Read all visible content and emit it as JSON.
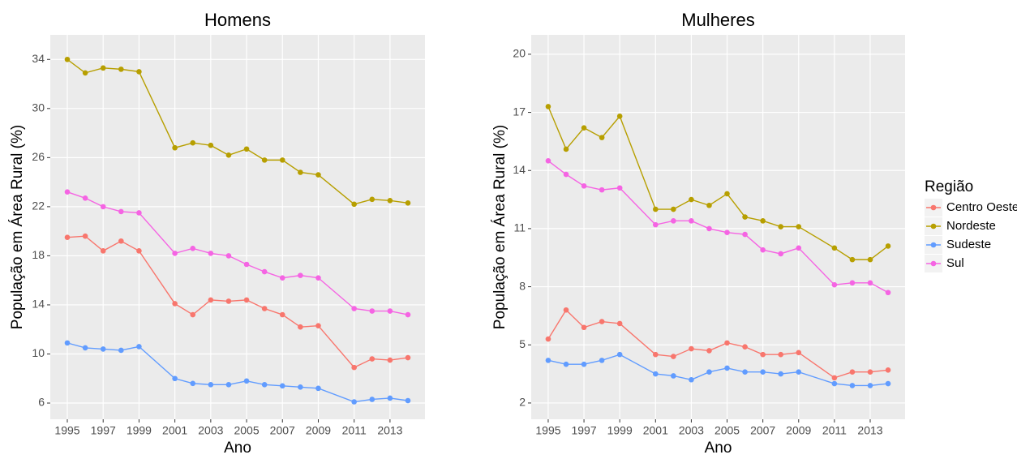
{
  "chart_data": [
    {
      "type": "line",
      "title": "Homens",
      "x_label": "Ano",
      "y_label": "População em Área Rural (%)",
      "x": [
        1995,
        1996,
        1997,
        1998,
        1999,
        2001,
        2002,
        2003,
        2004,
        2005,
        2006,
        2007,
        2008,
        2009,
        2011,
        2012,
        2013,
        2014
      ],
      "series": [
        {
          "name": "Centro Oeste",
          "color": "#F8766D",
          "values": [
            19.5,
            19.6,
            18.4,
            19.2,
            18.4,
            14.1,
            13.2,
            14.4,
            14.3,
            14.4,
            13.7,
            13.2,
            12.2,
            12.3,
            8.9,
            9.6,
            9.5,
            9.7
          ]
        },
        {
          "name": "Nordeste",
          "color": "#B79F00",
          "values": [
            34.0,
            32.9,
            33.3,
            33.2,
            33.0,
            26.8,
            27.2,
            27.0,
            26.2,
            26.7,
            25.8,
            25.8,
            24.8,
            24.6,
            22.2,
            22.6,
            22.5,
            22.3
          ]
        },
        {
          "name": "Sudeste",
          "color": "#619CFF",
          "values": [
            10.9,
            10.5,
            10.4,
            10.3,
            10.6,
            8.0,
            7.6,
            7.5,
            7.5,
            7.8,
            7.5,
            7.4,
            7.3,
            7.2,
            6.1,
            6.3,
            6.4,
            6.2
          ]
        },
        {
          "name": "Sul",
          "color": "#F564E3",
          "values": [
            23.2,
            22.7,
            22.0,
            21.6,
            21.5,
            18.2,
            18.6,
            18.2,
            18.0,
            17.3,
            16.7,
            16.2,
            16.4,
            16.2,
            13.7,
            13.5,
            13.5,
            13.2
          ]
        }
      ],
      "xlim": [
        1994.05,
        2014.95
      ],
      "xticks": [
        1995,
        1997,
        1999,
        2001,
        2003,
        2005,
        2007,
        2009,
        2011,
        2013
      ],
      "ylim": [
        4.68,
        36
      ],
      "yticks": [
        6,
        10,
        14,
        18,
        22,
        26,
        30,
        34
      ],
      "grid": true
    },
    {
      "type": "line",
      "title": "Mulheres",
      "x_label": "Ano",
      "y_label": "População em Área Rural (%)",
      "legend_title": "Região",
      "x": [
        1995,
        1996,
        1997,
        1998,
        1999,
        2001,
        2002,
        2003,
        2004,
        2005,
        2006,
        2007,
        2008,
        2009,
        2011,
        2012,
        2013,
        2014
      ],
      "series": [
        {
          "name": "Centro Oeste",
          "color": "#F8766D",
          "values": [
            5.3,
            6.8,
            5.9,
            6.2,
            6.1,
            4.5,
            4.4,
            4.8,
            4.7,
            5.1,
            4.9,
            4.5,
            4.5,
            4.6,
            3.3,
            3.6,
            3.6,
            3.7
          ]
        },
        {
          "name": "Nordeste",
          "color": "#B79F00",
          "values": [
            17.3,
            15.1,
            16.2,
            15.7,
            16.8,
            12.0,
            12.0,
            12.5,
            12.2,
            12.8,
            11.6,
            11.4,
            11.1,
            11.1,
            10.0,
            9.4,
            9.4,
            10.1
          ]
        },
        {
          "name": "Sudeste",
          "color": "#619CFF",
          "values": [
            4.2,
            4.0,
            4.0,
            4.2,
            4.5,
            3.5,
            3.4,
            3.2,
            3.6,
            3.8,
            3.6,
            3.6,
            3.5,
            3.6,
            3.0,
            2.9,
            2.9,
            3.0
          ]
        },
        {
          "name": "Sul",
          "color": "#F564E3",
          "values": [
            14.5,
            13.8,
            13.2,
            13.0,
            13.1,
            11.2,
            11.4,
            11.4,
            11.0,
            10.8,
            10.7,
            9.9,
            9.7,
            10.0,
            8.1,
            8.2,
            8.2,
            7.7
          ]
        }
      ],
      "xlim": [
        1994.05,
        2014.95
      ],
      "xticks": [
        1995,
        1997,
        1999,
        2001,
        2003,
        2005,
        2007,
        2009,
        2011,
        2013
      ],
      "ylim": [
        1.16,
        21.0
      ],
      "yticks": [
        2,
        5,
        8,
        11,
        14,
        17,
        20
      ],
      "grid": true,
      "legend": "right"
    }
  ]
}
